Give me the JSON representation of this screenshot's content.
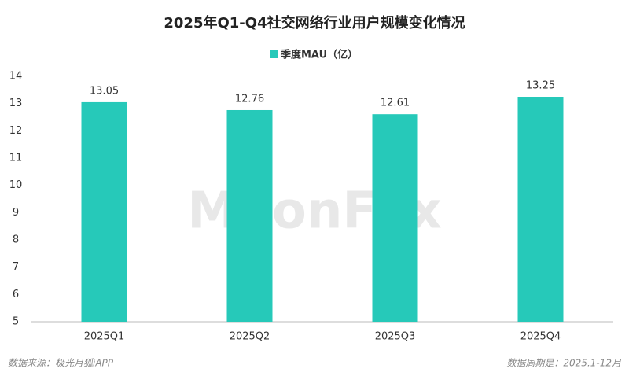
{
  "chart_data": {
    "type": "bar",
    "title": "2025年Q1-Q4社交网络行业用户规模变化情况",
    "categories": [
      "2025Q1",
      "2025Q2",
      "2025Q3",
      "2025Q4"
    ],
    "series": [
      {
        "name": "季度MAU（亿）",
        "color": "#26c9b9",
        "values": [
          13.05,
          12.76,
          12.61,
          13.25
        ]
      }
    ],
    "ylim": [
      5,
      14
    ],
    "yticks": [
      5,
      6,
      7,
      8,
      9,
      10,
      11,
      12,
      13,
      14
    ],
    "watermark": "MoonFox",
    "source": "数据来源：极光月狐iAPP",
    "period": "数据周期是：2025.1-12月"
  }
}
